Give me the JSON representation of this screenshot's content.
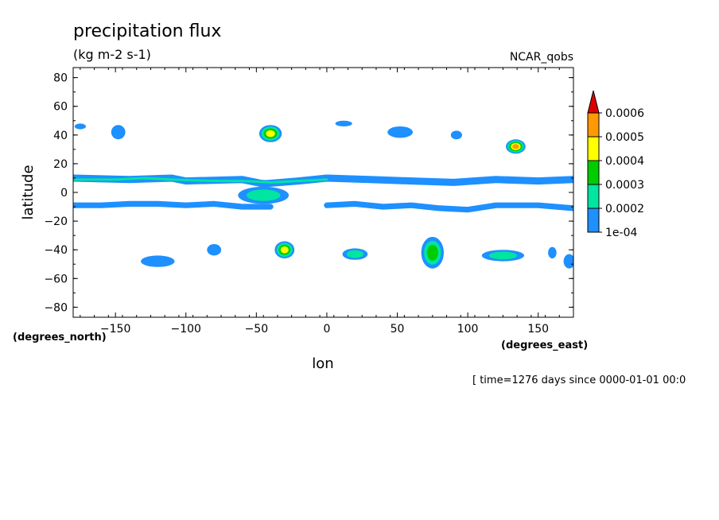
{
  "chart_data": {
    "type": "heatmap",
    "title": "precipitation flux",
    "subtitle": "(kg m-2 s-1)",
    "source_label": "NCAR_qobs",
    "xlabel": "lon",
    "ylabel": "latitude",
    "x_units": "(degrees_east)",
    "y_units": "(degrees_north)",
    "xlim": [
      -180,
      175
    ],
    "ylim": [
      -87,
      87
    ],
    "x_ticks": [
      -150,
      -100,
      -50,
      0,
      50,
      100,
      150
    ],
    "y_ticks": [
      80,
      60,
      40,
      20,
      0,
      -20,
      -40,
      -60,
      -80
    ],
    "time_note": "[ time=1276 days since 0000-01-01 00:0",
    "colorbar": {
      "levels": [
        "1e-04",
        "0.0002",
        "0.0003",
        "0.0004",
        "0.0005",
        "0.0006"
      ],
      "colors": [
        "#1e90ff",
        "#00e5a0",
        "#00cc00",
        "#ffff00",
        "#ff9900",
        "#dd0000"
      ],
      "extend": "max"
    },
    "features": [
      {
        "type": "band",
        "lon": [
          -180,
          -140,
          -110,
          -100,
          -60,
          -45,
          -20,
          0,
          30,
          60,
          90,
          120,
          150,
          175
        ],
        "lat": [
          10,
          9,
          10,
          8,
          9,
          6,
          8,
          10,
          9,
          8,
          7,
          9,
          8,
          9
        ],
        "width": 5,
        "level": 1
      },
      {
        "type": "band",
        "lon": [
          -180,
          -150,
          -130,
          -110,
          -80,
          -60,
          -40,
          -20,
          0
        ],
        "lat": [
          9,
          9,
          10,
          9,
          8,
          8,
          7,
          8,
          9
        ],
        "width": 3,
        "level": 2
      },
      {
        "type": "band",
        "lon": [
          -180,
          -160,
          -140,
          -120,
          -100,
          -80,
          -60,
          -40
        ],
        "lat": [
          -9,
          -9,
          -8,
          -8,
          -9,
          -8,
          -10,
          -10
        ],
        "width": 4,
        "level": 1
      },
      {
        "type": "band",
        "lon": [
          0,
          20,
          40,
          60,
          80,
          100,
          120,
          150,
          175
        ],
        "lat": [
          -9,
          -8,
          -10,
          -9,
          -11,
          -12,
          -9,
          -9,
          -11
        ],
        "width": 4,
        "level": 1
      },
      {
        "type": "blob",
        "lon": -40,
        "lat": 41,
        "rx": 8,
        "ry": 6,
        "level": 4
      },
      {
        "type": "blob",
        "lon": 134,
        "lat": 32,
        "rx": 7,
        "ry": 5,
        "level": 5
      },
      {
        "type": "blob",
        "lon": -30,
        "lat": -40,
        "rx": 7,
        "ry": 6,
        "level": 4
      },
      {
        "type": "blob",
        "lon": -45,
        "lat": -2,
        "rx": 18,
        "ry": 6,
        "level": 2
      },
      {
        "type": "blob",
        "lon": 75,
        "lat": -42,
        "rx": 8,
        "ry": 11,
        "level": 3
      },
      {
        "type": "blob",
        "lon": 125,
        "lat": -44,
        "rx": 15,
        "ry": 4,
        "level": 2
      },
      {
        "type": "blob",
        "lon": 20,
        "lat": -43,
        "rx": 9,
        "ry": 4,
        "level": 2
      },
      {
        "type": "blob",
        "lon": -80,
        "lat": -40,
        "rx": 5,
        "ry": 4,
        "level": 1
      },
      {
        "type": "blob",
        "lon": -120,
        "lat": -48,
        "rx": 12,
        "ry": 4,
        "level": 1
      },
      {
        "type": "blob",
        "lon": -148,
        "lat": 42,
        "rx": 5,
        "ry": 5,
        "level": 1
      },
      {
        "type": "blob",
        "lon": -175,
        "lat": 46,
        "rx": 4,
        "ry": 2,
        "level": 1
      },
      {
        "type": "blob",
        "lon": 12,
        "lat": 48,
        "rx": 6,
        "ry": 2,
        "level": 1
      },
      {
        "type": "blob",
        "lon": 52,
        "lat": 42,
        "rx": 9,
        "ry": 4,
        "level": 1
      },
      {
        "type": "blob",
        "lon": 92,
        "lat": 40,
        "rx": 4,
        "ry": 3,
        "level": 1
      },
      {
        "type": "blob",
        "lon": 160,
        "lat": -42,
        "rx": 3,
        "ry": 4,
        "level": 1
      },
      {
        "type": "blob",
        "lon": 172,
        "lat": -48,
        "rx": 4,
        "ry": 5,
        "level": 1
      }
    ]
  }
}
